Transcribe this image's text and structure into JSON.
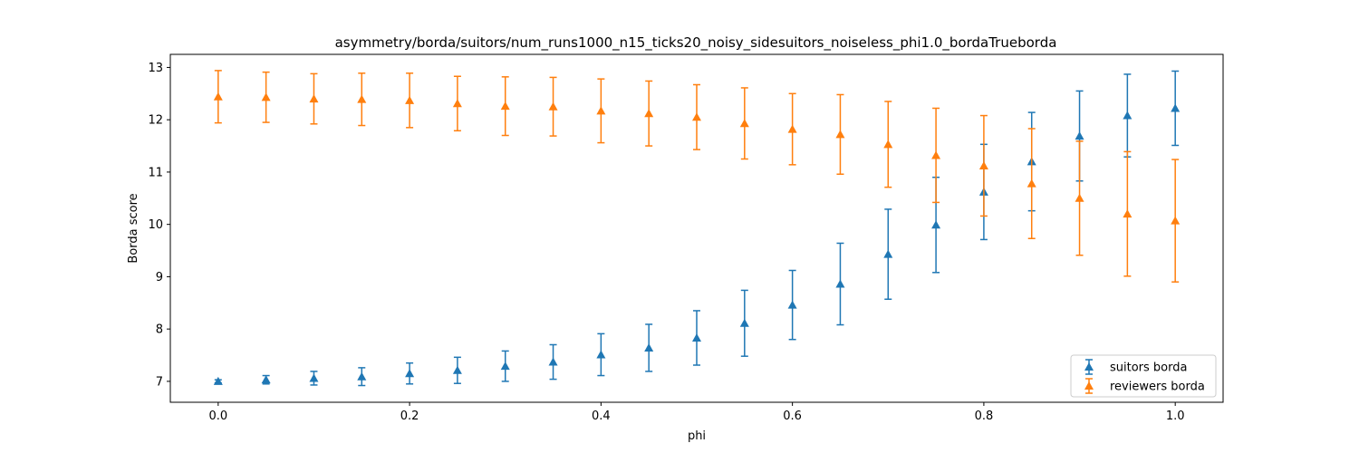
{
  "chart_data": {
    "type": "scatter",
    "title": "asymmetry/borda/suitors/num_runs1000_n15_ticks20_noisy_sidesuitors_noiseless_phi1.0_bordaTrueborda",
    "xlabel": "phi",
    "ylabel": "Borda score",
    "xlim": [
      -0.05,
      1.05
    ],
    "ylim": [
      6.6,
      13.25
    ],
    "xticks": [
      "0.0",
      "0.2",
      "0.4",
      "0.6",
      "0.8",
      "1.0"
    ],
    "yticks": [
      "7",
      "8",
      "9",
      "10",
      "11",
      "12",
      "13"
    ],
    "grid": false,
    "legend_position": "lower-right",
    "x": [
      0.0,
      0.05,
      0.1,
      0.15,
      0.2,
      0.25,
      0.3,
      0.35,
      0.4,
      0.45,
      0.5,
      0.55,
      0.6,
      0.65,
      0.7,
      0.75,
      0.8,
      0.85,
      0.9,
      0.95,
      1.0
    ],
    "series": [
      {
        "name": "suitors borda",
        "color": "#1f77b4",
        "marker": "triangle",
        "values": [
          7.0,
          7.03,
          7.06,
          7.09,
          7.15,
          7.21,
          7.29,
          7.37,
          7.51,
          7.64,
          7.83,
          8.11,
          8.46,
          8.86,
          9.43,
          9.99,
          10.62,
          11.2,
          11.69,
          12.08,
          12.22
        ],
        "error": [
          0.03,
          0.08,
          0.13,
          0.17,
          0.2,
          0.25,
          0.29,
          0.33,
          0.4,
          0.45,
          0.52,
          0.63,
          0.66,
          0.78,
          0.86,
          0.91,
          0.91,
          0.94,
          0.86,
          0.79,
          0.71
        ]
      },
      {
        "name": "reviewers borda",
        "color": "#ff7f0e",
        "marker": "triangle",
        "values": [
          12.44,
          12.43,
          12.4,
          12.39,
          12.37,
          12.31,
          12.26,
          12.25,
          12.17,
          12.12,
          12.05,
          11.93,
          11.82,
          11.72,
          11.53,
          11.32,
          11.12,
          10.78,
          10.5,
          10.2,
          10.07
        ],
        "error": [
          0.5,
          0.48,
          0.48,
          0.5,
          0.52,
          0.52,
          0.56,
          0.56,
          0.61,
          0.62,
          0.62,
          0.68,
          0.68,
          0.76,
          0.82,
          0.9,
          0.96,
          1.05,
          1.09,
          1.19,
          1.17
        ]
      }
    ]
  }
}
